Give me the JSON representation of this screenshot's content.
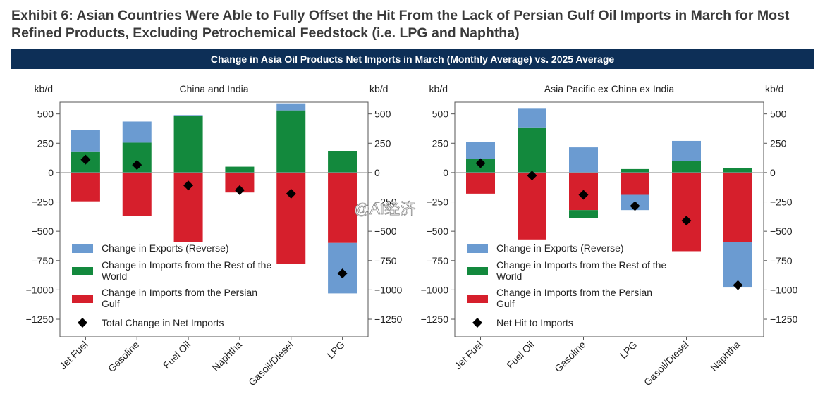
{
  "page": {
    "title_line1": "Exhibit 6: Asian Countries Were Able to Fully Offset the Hit From the Lack of Persian Gulf Oil Imports in March for Most",
    "title_line2": "Refined Products, Excluding Petrochemical Feedstock (i.e. LPG and Naphtha)",
    "banner": "Change in Asia Oil Products Net Imports in March (Monthly Average) vs. 2025 Average",
    "watermark": "@AI经济"
  },
  "colors": {
    "exports": "#6b9bd1",
    "imports_row": "#13893d",
    "imports_gulf": "#d61f2c",
    "total": "#000000",
    "banner": "#0d2f57"
  },
  "chart_data": [
    {
      "type": "bar",
      "stacked": true,
      "title": "China and India",
      "ylabel_left": "kb/d",
      "ylabel_right": "kb/d",
      "ylim": [
        -1400,
        600
      ],
      "yticks": [
        500,
        250,
        0,
        -250,
        -500,
        -750,
        -1000,
        -1250
      ],
      "categories": [
        "Jet Fuel",
        "Gasoline",
        "Fuel Oil",
        "Naphtha",
        "Gasoil/Diesel",
        "LPG"
      ],
      "series": [
        {
          "name": "Change in Exports (Reverse)",
          "key": "exports",
          "values": [
            190,
            180,
            10,
            0,
            60,
            -430
          ]
        },
        {
          "name": "Change in Imports from the Rest of the World",
          "key": "imports_row",
          "values": [
            175,
            255,
            480,
            50,
            530,
            180
          ]
        },
        {
          "name": "Change in Imports from the Persian Gulf",
          "key": "imports_gulf",
          "values": [
            -245,
            -370,
            -590,
            -170,
            -780,
            -600
          ]
        }
      ],
      "total": {
        "name": "Total Change in Net Imports",
        "values": [
          110,
          65,
          -110,
          -150,
          -180,
          -860
        ]
      },
      "legend": [
        "Change in Exports (Reverse)",
        "Change in Imports from the Rest of the World",
        "Change in Imports from the Persian Gulf",
        "Total Change in Net Imports"
      ]
    },
    {
      "type": "bar",
      "stacked": true,
      "title": "Asia Pacific ex China ex India",
      "ylabel_left": "kb/d",
      "ylabel_right": "kb/d",
      "ylim": [
        -1400,
        600
      ],
      "yticks": [
        500,
        250,
        0,
        -250,
        -500,
        -750,
        -1000,
        -1250
      ],
      "categories": [
        "Jet Fuel",
        "Fuel Oil",
        "Gasoline",
        "LPG",
        "Gasoil/Diesel",
        "Naphtha"
      ],
      "series": [
        {
          "name": "Change in Exports (Reverse)",
          "key": "exports",
          "values": [
            145,
            165,
            215,
            -130,
            170,
            -390
          ]
        },
        {
          "name": "Change in Imports from the Rest of the World",
          "key": "imports_row",
          "values": [
            115,
            385,
            -70,
            30,
            100,
            40
          ]
        },
        {
          "name": "Change in Imports from the Persian Gulf",
          "key": "imports_gulf",
          "values": [
            -180,
            -570,
            -320,
            -190,
            -670,
            -590
          ]
        }
      ],
      "total": {
        "name": "Net Hit to Imports",
        "values": [
          80,
          -25,
          -190,
          -285,
          -410,
          -960
        ]
      },
      "legend": [
        "Change in Exports (Reverse)",
        "Change in Imports from the Rest of the World",
        "Change in Imports from the Persian Gulf",
        "Net Hit to Imports"
      ]
    }
  ]
}
